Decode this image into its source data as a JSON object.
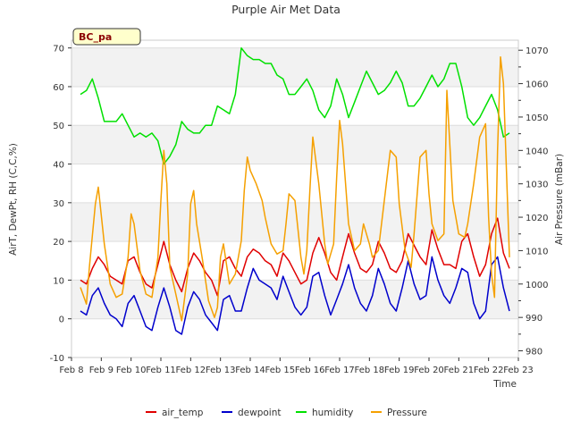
{
  "chart_data": {
    "type": "line",
    "title": "Purple Air Met Data",
    "xlabel": "Time",
    "ylabel_left": "AirT, DewPt, RH (C,C,%)",
    "ylabel_right": "Air Pressure (mBar)",
    "badge": "BC_pa",
    "x_range_days": [
      8,
      23
    ],
    "xticks": [
      {
        "day": 8,
        "label": "Feb 8"
      },
      {
        "day": 9,
        "label": "Feb 9"
      },
      {
        "day": 10,
        "label": "Feb 10"
      },
      {
        "day": 11,
        "label": "Feb 11"
      },
      {
        "day": 12,
        "label": "Feb 12"
      },
      {
        "day": 13,
        "label": "Feb 13"
      },
      {
        "day": 14,
        "label": "Feb 14"
      },
      {
        "day": 15,
        "label": "Feb 15"
      },
      {
        "day": 16,
        "label": "Feb 16"
      },
      {
        "day": 17,
        "label": "Feb 17"
      },
      {
        "day": 18,
        "label": "Feb 18"
      },
      {
        "day": 19,
        "label": "Feb 19"
      },
      {
        "day": 20,
        "label": "Feb 20"
      },
      {
        "day": 21,
        "label": "Feb 21"
      },
      {
        "day": 22,
        "label": "Feb 22"
      },
      {
        "day": 23,
        "label": "Feb 23"
      }
    ],
    "ylim_left": [
      -10,
      72
    ],
    "yticks_left": [
      "-10",
      "0",
      "10",
      "20",
      "30",
      "40",
      "50",
      "60",
      "70"
    ],
    "ylim_right": [
      978,
      1073
    ],
    "yticks_right": [
      "980",
      "990",
      "1000",
      "1010",
      "1020",
      "1030",
      "1040",
      "1050",
      "1060",
      "1070"
    ],
    "grid": true,
    "legend_position": "bottom",
    "series": [
      {
        "name": "air_temp",
        "color": "#e00000",
        "axis": "left",
        "x": [
          8.3,
          8.5,
          8.7,
          8.9,
          9.1,
          9.3,
          9.5,
          9.7,
          9.9,
          10.1,
          10.3,
          10.5,
          10.7,
          10.9,
          11.1,
          11.3,
          11.5,
          11.7,
          11.9,
          12.1,
          12.3,
          12.5,
          12.7,
          12.9,
          13.1,
          13.3,
          13.5,
          13.7,
          13.9,
          14.1,
          14.3,
          14.5,
          14.7,
          14.9,
          15.1,
          15.3,
          15.5,
          15.7,
          15.9,
          16.1,
          16.3,
          16.5,
          16.7,
          16.9,
          17.1,
          17.3,
          17.5,
          17.7,
          17.9,
          18.1,
          18.3,
          18.5,
          18.7,
          18.9,
          19.1,
          19.3,
          19.5,
          19.7,
          19.9,
          20.1,
          20.3,
          20.5,
          20.7,
          20.9,
          21.1,
          21.3,
          21.5,
          21.7,
          21.9,
          22.1,
          22.3,
          22.5,
          22.7
        ],
        "y": [
          10,
          9,
          13,
          16,
          14,
          11,
          10,
          9,
          15,
          16,
          12,
          9,
          8,
          14,
          20,
          14,
          10,
          7,
          13,
          17,
          15,
          12,
          10,
          6,
          15,
          16,
          13,
          11,
          16,
          18,
          17,
          15,
          14,
          11,
          17,
          15,
          12,
          9,
          10,
          17,
          21,
          17,
          12,
          10,
          16,
          22,
          17,
          13,
          12,
          14,
          20,
          17,
          13,
          12,
          15,
          22,
          19,
          16,
          14,
          23,
          18,
          14,
          14,
          13,
          20,
          22,
          16,
          11,
          14,
          22,
          26,
          17,
          13
        ]
      },
      {
        "name": "dewpoint",
        "color": "#0000cc",
        "axis": "left",
        "x": [
          8.3,
          8.5,
          8.7,
          8.9,
          9.1,
          9.3,
          9.5,
          9.7,
          9.9,
          10.1,
          10.3,
          10.5,
          10.7,
          10.9,
          11.1,
          11.3,
          11.5,
          11.7,
          11.9,
          12.1,
          12.3,
          12.5,
          12.7,
          12.9,
          13.1,
          13.3,
          13.5,
          13.7,
          13.9,
          14.1,
          14.3,
          14.5,
          14.7,
          14.9,
          15.1,
          15.3,
          15.5,
          15.7,
          15.9,
          16.1,
          16.3,
          16.5,
          16.7,
          16.9,
          17.1,
          17.3,
          17.5,
          17.7,
          17.9,
          18.1,
          18.3,
          18.5,
          18.7,
          18.9,
          19.1,
          19.3,
          19.5,
          19.7,
          19.9,
          20.1,
          20.3,
          20.5,
          20.7,
          20.9,
          21.1,
          21.3,
          21.5,
          21.7,
          21.9,
          22.1,
          22.3,
          22.5,
          22.7
        ],
        "y": [
          2,
          1,
          6,
          8,
          4,
          1,
          0,
          -2,
          4,
          6,
          2,
          -2,
          -3,
          3,
          8,
          3,
          -3,
          -4,
          3,
          7,
          5,
          1,
          -1,
          -3,
          5,
          6,
          2,
          2,
          8,
          13,
          10,
          9,
          8,
          5,
          11,
          7,
          3,
          1,
          3,
          11,
          12,
          6,
          1,
          5,
          9,
          14,
          8,
          4,
          2,
          6,
          13,
          9,
          4,
          2,
          8,
          15,
          9,
          5,
          6,
          16,
          10,
          6,
          4,
          8,
          13,
          12,
          4,
          0,
          2,
          14,
          16,
          8,
          2
        ]
      },
      {
        "name": "humidity",
        "color": "#00e000",
        "axis": "left",
        "x": [
          8.3,
          8.5,
          8.7,
          8.9,
          9.1,
          9.3,
          9.5,
          9.7,
          9.9,
          10.1,
          10.3,
          10.5,
          10.7,
          10.9,
          11.1,
          11.3,
          11.5,
          11.7,
          11.9,
          12.1,
          12.3,
          12.5,
          12.7,
          12.9,
          13.1,
          13.3,
          13.5,
          13.7,
          13.9,
          14.1,
          14.3,
          14.5,
          14.7,
          14.9,
          15.1,
          15.3,
          15.5,
          15.7,
          15.9,
          16.1,
          16.3,
          16.5,
          16.7,
          16.9,
          17.1,
          17.3,
          17.5,
          17.7,
          17.9,
          18.1,
          18.3,
          18.5,
          18.7,
          18.9,
          19.1,
          19.3,
          19.5,
          19.7,
          19.9,
          20.1,
          20.3,
          20.5,
          20.7,
          20.9,
          21.1,
          21.3,
          21.5,
          21.7,
          21.9,
          22.1,
          22.3,
          22.5,
          22.7
        ],
        "y": [
          58,
          59,
          62,
          57,
          51,
          51,
          51,
          53,
          50,
          47,
          48,
          47,
          48,
          46,
          40,
          42,
          45,
          51,
          49,
          48,
          48,
          50,
          50,
          55,
          54,
          53,
          58,
          70,
          68,
          67,
          67,
          66,
          66,
          63,
          62,
          58,
          58,
          60,
          62,
          59,
          54,
          52,
          55,
          62,
          58,
          52,
          56,
          60,
          64,
          61,
          58,
          59,
          61,
          64,
          61,
          55,
          55,
          57,
          60,
          63,
          60,
          62,
          66,
          66,
          60,
          52,
          50,
          52,
          55,
          58,
          54,
          47,
          48
        ]
      },
      {
        "name": "Pressure",
        "color": "#f5a000",
        "axis": "right",
        "x": [
          8.3,
          8.5,
          8.6,
          8.8,
          8.9,
          9.1,
          9.3,
          9.5,
          9.7,
          9.9,
          10.0,
          10.1,
          10.3,
          10.5,
          10.7,
          10.9,
          11.0,
          11.1,
          11.2,
          11.3,
          11.5,
          11.7,
          11.9,
          12.0,
          12.1,
          12.2,
          12.4,
          12.6,
          12.8,
          12.9,
          13.0,
          13.1,
          13.3,
          13.5,
          13.7,
          13.8,
          13.9,
          14.0,
          14.2,
          14.4,
          14.5,
          14.7,
          14.9,
          15.1,
          15.2,
          15.3,
          15.5,
          15.7,
          15.8,
          15.9,
          16.0,
          16.1,
          16.3,
          16.5,
          16.6,
          16.8,
          16.9,
          17.0,
          17.1,
          17.3,
          17.5,
          17.7,
          17.8,
          18.0,
          18.1,
          18.3,
          18.5,
          18.7,
          18.9,
          19.0,
          19.2,
          19.4,
          19.5,
          19.7,
          19.9,
          20.0,
          20.1,
          20.3,
          20.5,
          20.6,
          20.8,
          21.0,
          21.2,
          21.3,
          21.5,
          21.7,
          21.9,
          22.0,
          22.1,
          22.2,
          22.3,
          22.4,
          22.5,
          22.7
        ],
        "y": [
          999,
          994,
          1005,
          1024,
          1029,
          1012,
          1000,
          996,
          997,
          1008,
          1021,
          1018,
          1004,
          997,
          996,
          1008,
          1025,
          1040,
          1030,
          1005,
          997,
          989,
          1003,
          1024,
          1028,
          1018,
          1007,
          995,
          990,
          993,
          1008,
          1012,
          1000,
          1003,
          1013,
          1028,
          1038,
          1034,
          1030,
          1025,
          1020,
          1012,
          1009,
          1010,
          1018,
          1027,
          1025,
          1008,
          1003,
          1010,
          1028,
          1044,
          1030,
          1012,
          1006,
          1012,
          1032,
          1049,
          1042,
          1018,
          1010,
          1012,
          1018,
          1012,
          1008,
          1010,
          1025,
          1040,
          1038,
          1024,
          1010,
          1005,
          1015,
          1038,
          1040,
          1027,
          1018,
          1013,
          1015,
          1058,
          1025,
          1015,
          1014,
          1018,
          1030,
          1044,
          1048,
          1020,
          1003,
          996,
          1040,
          1068,
          1060,
          1008
        ]
      }
    ]
  }
}
